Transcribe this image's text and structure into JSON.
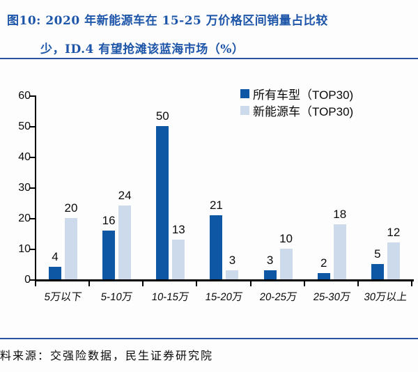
{
  "title": {
    "line1": "图10: 2020 年新能源车在 15-25 万价格区间销量占比较",
    "line2": "少，ID.4 有望抢滩该蓝海市场（%）"
  },
  "source_note": "料来源：交强险数据，民生证券研究院",
  "colors": {
    "primary": "#0e57a4",
    "secondary": "#ccdaeb",
    "title_blue": "#1d55a8",
    "rule_blue": "#2b53a3",
    "axis_black": "#000000",
    "label_black": "#0a0a0a"
  },
  "chart_data": {
    "type": "bar",
    "categories": [
      "5万以下",
      "5-10万",
      "10-15万",
      "15-20万",
      "20-25万",
      "25-30万",
      "30万以上"
    ],
    "series": [
      {
        "name": "所有车型（TOP30)",
        "color_key": "primary",
        "values": [
          4,
          16,
          50,
          21,
          3,
          2,
          5
        ]
      },
      {
        "name": "新能源车（TOP30)",
        "color_key": "secondary",
        "values": [
          20,
          24,
          13,
          3,
          10,
          18,
          12
        ]
      }
    ],
    "title": "2020 年新能源车在 15-25 万价格区间销量占比较少，ID.4 有望抢滩该蓝海市场（%）",
    "xlabel": "",
    "ylabel": "",
    "ylim": [
      0,
      60
    ],
    "yticks": [
      0,
      10,
      20,
      30,
      40,
      50,
      60
    ],
    "grid": false,
    "data_labels": true,
    "legend_position": "top-right"
  }
}
